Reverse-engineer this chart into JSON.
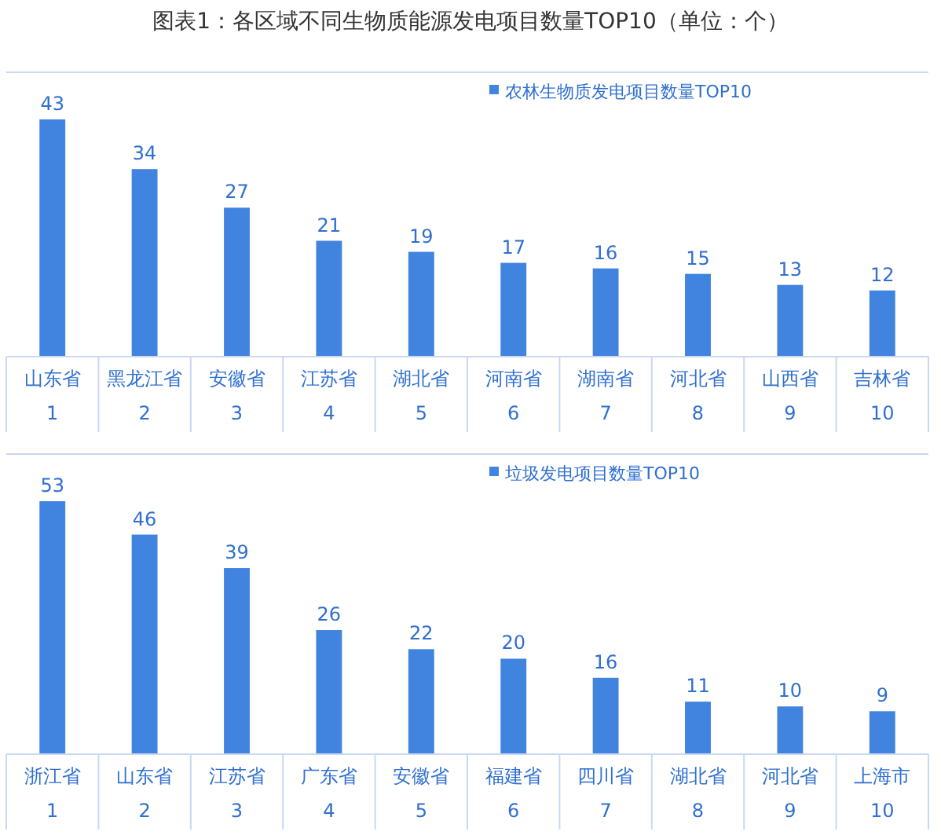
{
  "chart_data": [
    {
      "type": "bar",
      "title": "图表1：各区域不同生物质能源发电项目数量TOP10（单位：个）",
      "categories": [
        "山东省\n1",
        "黑龙江省\n2",
        "安徽省\n3",
        "江苏省\n4",
        "湖北省\n5",
        "河南省\n6",
        "湖南省\n7",
        "河北省\n8",
        "山西省\n9",
        "吉林省\n10"
      ],
      "series": [
        {
          "name": "农林生物质发电项目数量TOP10",
          "color": "#4184e0",
          "values": [
            43,
            34,
            27,
            21,
            19,
            17,
            16,
            15,
            13,
            12
          ]
        }
      ],
      "data_labels": true,
      "legend": "top right"
    },
    {
      "type": "bar",
      "categories": [
        "浙江省\n1",
        "山东省\n2",
        "江苏省\n3",
        "广东省\n4",
        "安徽省\n5",
        "福建省\n6",
        "四川省\n7",
        "湖北省\n8",
        "河北省\n9",
        "上海市\n10"
      ],
      "series": [
        {
          "name": "垃圾发电项目数量TOP10",
          "color": "#4184e0",
          "values": [
            53,
            46,
            39,
            26,
            22,
            20,
            16,
            11,
            10,
            9
          ]
        }
      ],
      "data_labels": true,
      "legend": "top right"
    }
  ]
}
